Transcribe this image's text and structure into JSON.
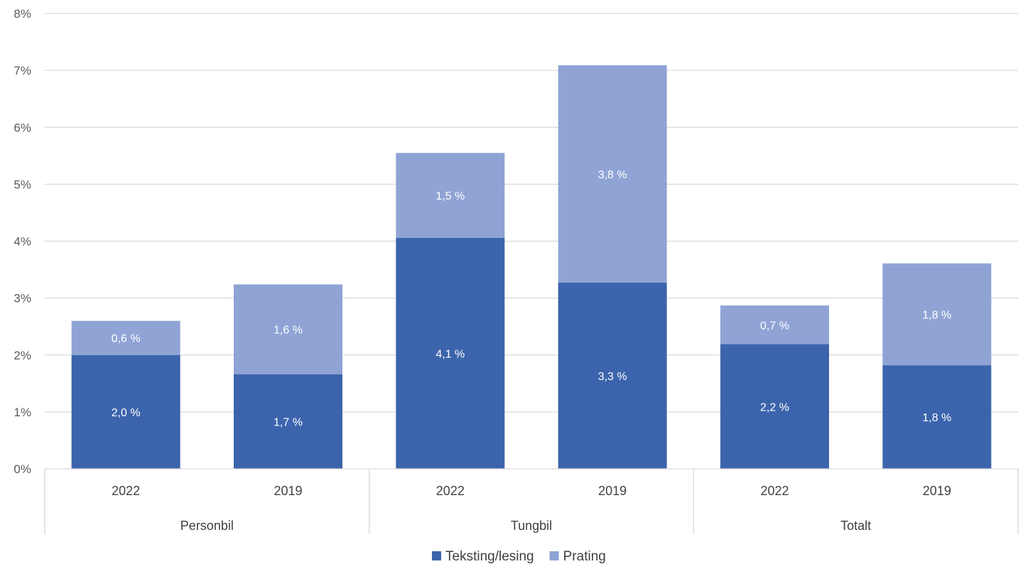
{
  "chart_data": {
    "type": "bar",
    "stacked": true,
    "categories": [
      "2022",
      "2019",
      "2022",
      "2019",
      "2022",
      "2019"
    ],
    "groups": [
      {
        "label": "Personbil",
        "span": [
          0,
          1
        ]
      },
      {
        "label": "Tungbil",
        "span": [
          2,
          3
        ]
      },
      {
        "label": "Totalt",
        "span": [
          4,
          5
        ]
      }
    ],
    "series": [
      {
        "name": "Teksting/lesing",
        "values": [
          2.0,
          1.66,
          4.06,
          3.27,
          2.19,
          1.82
        ],
        "labels": [
          "2,0 %",
          "1,7 %",
          "4,1 %",
          "3,3 %",
          "2,2 %",
          "1,8 %"
        ],
        "color": "#3c64ac"
      },
      {
        "name": "Prating",
        "values": [
          0.6,
          1.58,
          1.49,
          3.82,
          0.68,
          1.79
        ],
        "labels": [
          "0,6 %",
          "1,6 %",
          "1,5 %",
          "3,8 %",
          "0,7 %",
          "1,8 %"
        ],
        "color": "#8fa4d5"
      }
    ],
    "ylim": [
      0,
      8
    ],
    "yticks": [
      "0%",
      "1%",
      "2%",
      "3%",
      "4%",
      "5%",
      "6%",
      "7%",
      "8%"
    ],
    "grid": true,
    "legend_position": "bottom"
  }
}
